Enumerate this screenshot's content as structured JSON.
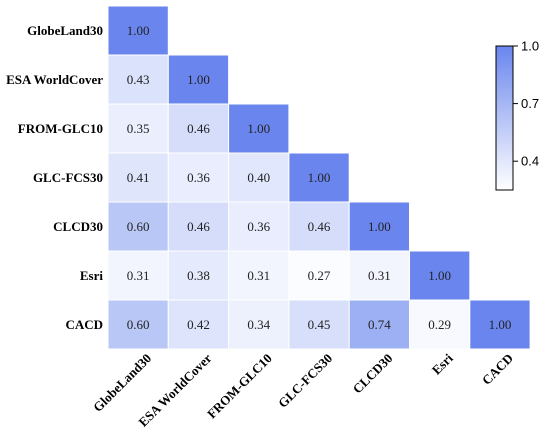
{
  "chart_data": {
    "type": "heatmap",
    "title": "",
    "xlabel": "",
    "ylabel": "",
    "labels": [
      "GlobeLand30",
      "ESA WorldCover",
      "FROM-GLC10",
      "GLC-FCS30",
      "CLCD30",
      "Esri",
      "CACD"
    ],
    "matrix": [
      [
        1.0
      ],
      [
        0.43,
        1.0
      ],
      [
        0.35,
        0.46,
        1.0
      ],
      [
        0.41,
        0.36,
        0.4,
        1.0
      ],
      [
        0.6,
        0.46,
        0.36,
        0.46,
        1.0
      ],
      [
        0.31,
        0.38,
        0.31,
        0.27,
        0.31,
        1.0
      ],
      [
        0.6,
        0.42,
        0.34,
        0.45,
        0.74,
        0.29,
        1.0
      ]
    ],
    "triangle": "lower",
    "value_format": "2 decimals",
    "colorbar": {
      "min": 0.25,
      "max": 1.0,
      "ticks": [
        "1.0",
        "0.7",
        "0.4"
      ],
      "tick_values": [
        1.0,
        0.7,
        0.4
      ],
      "placement": "right"
    },
    "colors": {
      "low": "#ffffff",
      "high": "#6a86ee",
      "text": "#222222"
    }
  }
}
